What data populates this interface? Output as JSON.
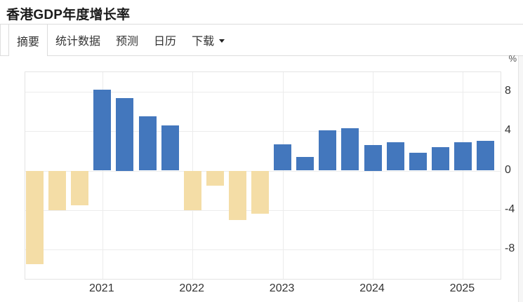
{
  "header": {
    "title": "香港GDP年度增长率"
  },
  "tabs": [
    {
      "label": "摘要",
      "active": true
    },
    {
      "label": "统计数据",
      "active": false
    },
    {
      "label": "预测",
      "active": false
    },
    {
      "label": "日历",
      "active": false
    },
    {
      "label": "下载",
      "active": false,
      "has_dropdown": true
    }
  ],
  "chart_data": {
    "type": "bar",
    "title": "香港GDP年度增长率",
    "unit_label": "%",
    "legend": false,
    "grid": true,
    "ylim": [
      -11,
      10
    ],
    "yticks": [
      8,
      4,
      0,
      -4,
      -8
    ],
    "categories": [
      "2020-Q2",
      "2020-Q3",
      "2020-Q4",
      "2021-Q1",
      "2021-Q2",
      "2021-Q3",
      "2021-Q4",
      "2022-Q1",
      "2022-Q2",
      "2022-Q3",
      "2022-Q4",
      "2023-Q1",
      "2023-Q2",
      "2023-Q3",
      "2023-Q4",
      "2024-Q1",
      "2024-Q2",
      "2024-Q3",
      "2024-Q4",
      "2025-Q1",
      "2025-Q2"
    ],
    "values": [
      -9.5,
      -4.0,
      -3.5,
      8.2,
      7.4,
      5.5,
      4.6,
      -4.0,
      -1.5,
      -5.0,
      -4.4,
      2.7,
      1.4,
      4.1,
      4.3,
      2.6,
      2.9,
      1.8,
      2.4,
      2.9,
      3.0
    ],
    "year_ticks": [
      {
        "label": "2021",
        "bar_index": 3
      },
      {
        "label": "2022",
        "bar_index": 7
      },
      {
        "label": "2023",
        "bar_index": 11
      },
      {
        "label": "2024",
        "bar_index": 15
      },
      {
        "label": "2025",
        "bar_index": 19
      }
    ],
    "colors": {
      "positive_bar": "#4377BD",
      "negative_bar": "#F4DDA6"
    }
  }
}
